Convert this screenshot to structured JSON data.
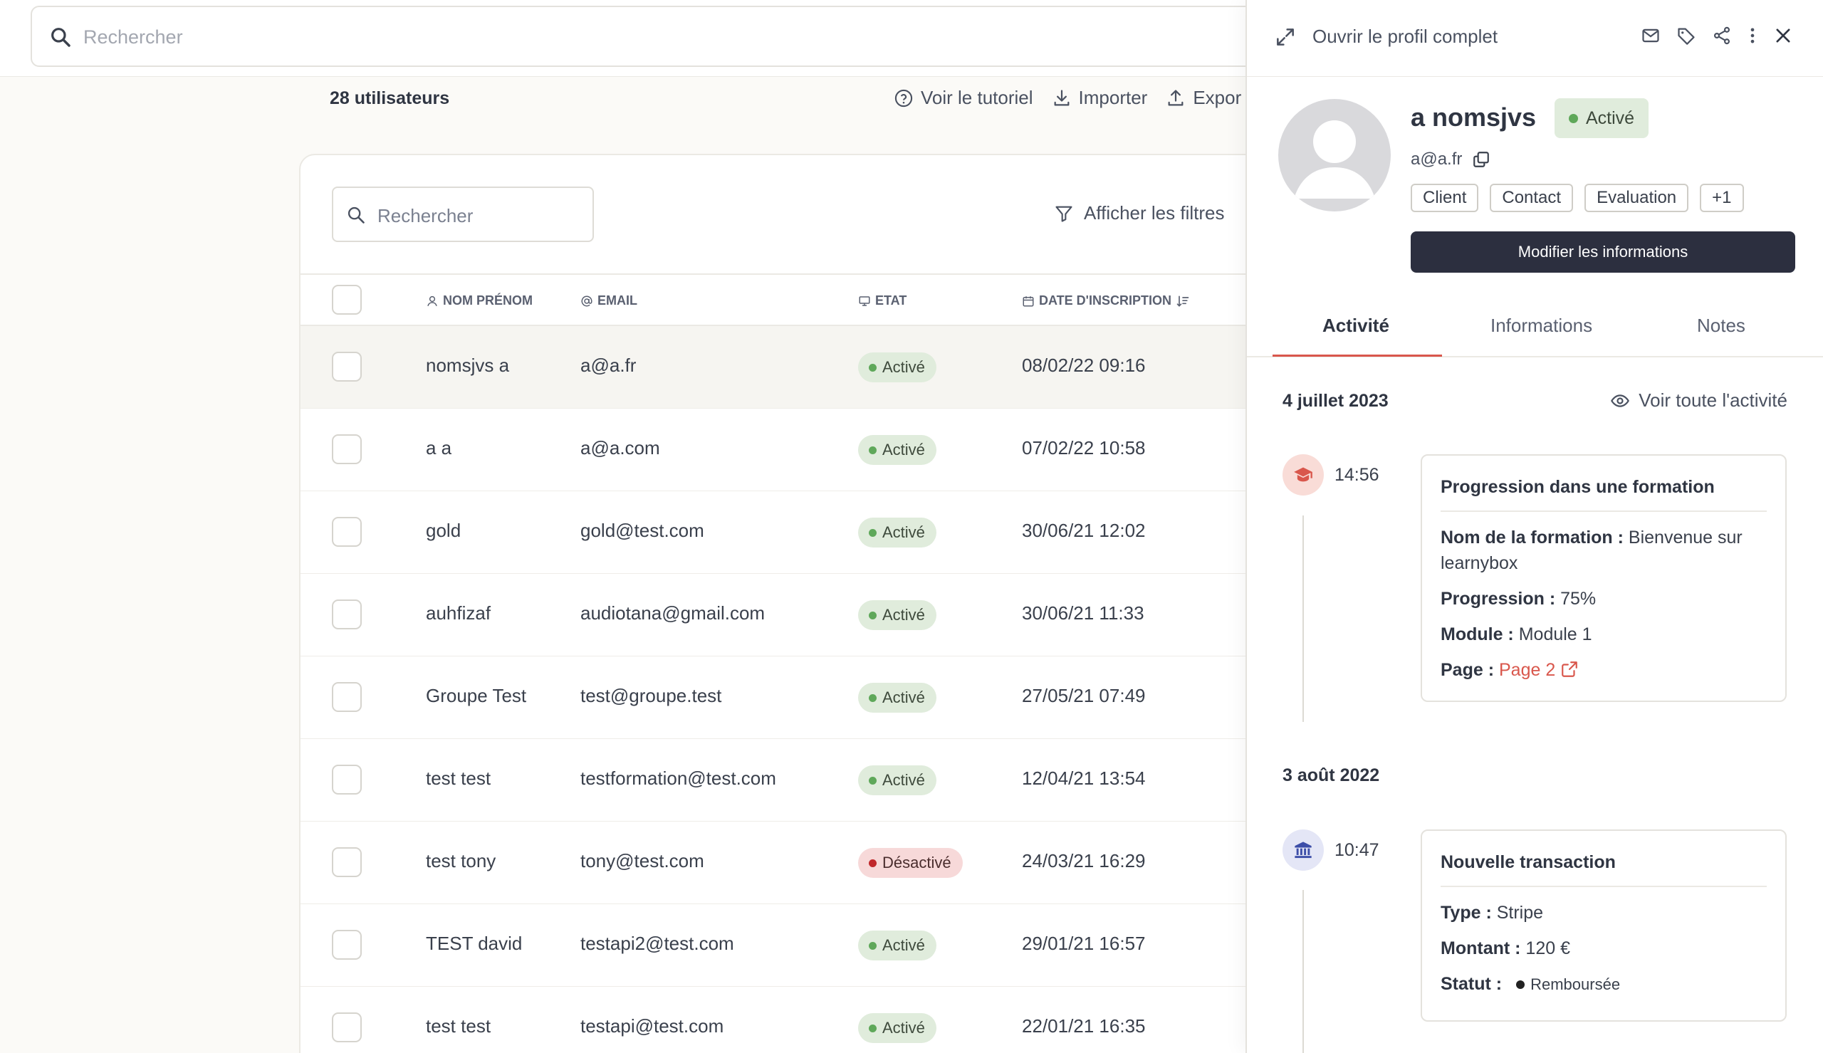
{
  "top_search": {
    "placeholder": "Rechercher"
  },
  "user_count": "28 utilisateurs",
  "actions": {
    "tutorial": "Voir le tutoriel",
    "import": "Importer",
    "export": "Expor"
  },
  "table": {
    "search_placeholder": "Rechercher",
    "filters_label": "Afficher les filtres",
    "columns": {
      "name": "NOM PRÉNOM",
      "email": "EMAIL",
      "state": "ETAT",
      "date": "DATE D'INSCRIPTION"
    },
    "rows": [
      {
        "name": "nomsjvs a",
        "email": "a@a.fr",
        "state": "Activé",
        "date": "08/02/22 09:16"
      },
      {
        "name": "a a",
        "email": "a@a.com",
        "state": "Activé",
        "date": "07/02/22 10:58"
      },
      {
        "name": "gold",
        "email": "gold@test.com",
        "state": "Activé",
        "date": "30/06/21 12:02"
      },
      {
        "name": "auhfizaf",
        "email": "audiotana@gmail.com",
        "state": "Activé",
        "date": "30/06/21 11:33"
      },
      {
        "name": "Groupe Test",
        "email": "test@groupe.test",
        "state": "Activé",
        "date": "27/05/21 07:49"
      },
      {
        "name": "test test",
        "email": "testformation@test.com",
        "state": "Activé",
        "date": "12/04/21 13:54"
      },
      {
        "name": "test tony",
        "email": "tony@test.com",
        "state": "Désactivé",
        "date": "24/03/21 16:29"
      },
      {
        "name": "TEST david",
        "email": "testapi2@test.com",
        "state": "Activé",
        "date": "29/01/21 16:57"
      },
      {
        "name": "test test",
        "email": "testapi@test.com",
        "state": "Activé",
        "date": "22/01/21 16:35"
      }
    ]
  },
  "panel": {
    "open_full_profile": "Ouvrir le profil complet",
    "name": "a nomsjvs",
    "status": "Activé",
    "email": "a@a.fr",
    "tags": [
      "Client",
      "Contact",
      "Evaluation",
      "+1"
    ],
    "edit_button": "Modifier les informations",
    "tabs": [
      "Activité",
      "Informations",
      "Notes"
    ],
    "see_all": "Voir toute l'activité",
    "events": [
      {
        "date": "4 juillet 2023",
        "time": "14:56",
        "title": "Progression dans une formation",
        "training_label": "Nom de la formation :",
        "training_value": "Bienvenue sur learnybox",
        "progress_label": "Progression :",
        "progress_value": "75%",
        "module_label": "Module :",
        "module_value": "Module 1",
        "page_label": "Page :",
        "page_value": "Page 2"
      },
      {
        "date": "3 août 2022",
        "time": "10:47",
        "title": "Nouvelle transaction",
        "type_label": "Type :",
        "type_value": "Stripe",
        "amount_label": "Montant :",
        "amount_value": "120 €",
        "status_label": "Statut :",
        "status_value": "Remboursée"
      }
    ]
  },
  "colors": {
    "accent": "#d9574c",
    "active": "#5fa85a",
    "inactive": "#c0282b",
    "dark_button": "#2c2f3f"
  }
}
